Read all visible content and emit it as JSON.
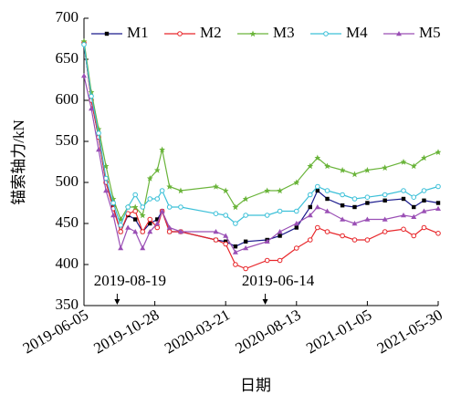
{
  "chart_data": {
    "type": "line",
    "x_label": "日期",
    "y_label": "锚索轴力/kN",
    "x": [
      "2019-06-05",
      "2019-06-20",
      "2019-07-05",
      "2019-07-20",
      "2019-08-04",
      "2019-08-19",
      "2019-09-03",
      "2019-09-18",
      "2019-10-03",
      "2019-10-18",
      "2019-11-02",
      "2019-11-12",
      "2019-11-27",
      "2019-12-20",
      "2020-03-01",
      "2020-03-21",
      "2020-04-10",
      "2020-05-01",
      "2020-06-14",
      "2020-07-10",
      "2020-08-13",
      "2020-09-10",
      "2020-09-25",
      "2020-10-15",
      "2020-11-15",
      "2020-12-10",
      "2021-01-05",
      "2021-02-10",
      "2021-03-20",
      "2021-04-10",
      "2021-05-01",
      "2021-05-30"
    ],
    "series": [
      {
        "name": "M1",
        "color": "#1a1a8c",
        "marker": "square",
        "values": [
          670,
          600,
          555,
          500,
          470,
          440,
          460,
          455,
          440,
          450,
          455,
          465,
          440,
          440,
          430,
          428,
          422,
          428,
          430,
          435,
          445,
          470,
          490,
          480,
          472,
          470,
          475,
          478,
          480,
          470,
          478,
          475
        ]
      },
      {
        "name": "M2",
        "color": "#e8262a",
        "marker": "circle",
        "values": [
          670,
          600,
          555,
          500,
          468,
          440,
          462,
          465,
          440,
          455,
          445,
          465,
          440,
          440,
          430,
          425,
          400,
          395,
          405,
          405,
          420,
          430,
          445,
          440,
          435,
          430,
          430,
          440,
          443,
          435,
          445,
          438
        ]
      },
      {
        "name": "M3",
        "color": "#6ab43a",
        "marker": "star",
        "values": [
          672,
          610,
          565,
          520,
          480,
          455,
          470,
          470,
          460,
          505,
          515,
          540,
          495,
          490,
          495,
          490,
          470,
          480,
          490,
          490,
          500,
          520,
          530,
          520,
          515,
          510,
          515,
          518,
          525,
          520,
          530,
          537
        ]
      },
      {
        "name": "M4",
        "color": "#3cc0d8",
        "marker": "circle",
        "values": [
          668,
          605,
          560,
          505,
          475,
          448,
          470,
          485,
          470,
          480,
          480,
          490,
          470,
          470,
          462,
          460,
          450,
          460,
          460,
          465,
          465,
          485,
          495,
          490,
          485,
          480,
          482,
          485,
          490,
          482,
          490,
          495
        ]
      },
      {
        "name": "M5",
        "color": "#9a4fb5",
        "marker": "triangle",
        "values": [
          630,
          590,
          540,
          490,
          460,
          420,
          445,
          440,
          420,
          440,
          450,
          465,
          445,
          440,
          440,
          435,
          415,
          420,
          428,
          440,
          450,
          460,
          470,
          465,
          455,
          450,
          455,
          455,
          460,
          458,
          465,
          468
        ]
      }
    ],
    "xlim": [
      "2019-06-05",
      "2021-05-30"
    ],
    "xticks": [
      "2019-06-05",
      "2019-10-28",
      "2020-03-21",
      "2020-08-13",
      "2021-01-05",
      "2021-05-30"
    ],
    "ylim": [
      350,
      700
    ],
    "yticks": [
      350,
      400,
      450,
      500,
      550,
      600,
      650,
      700
    ],
    "annotations": [
      {
        "text": "2019-08-19",
        "x": "2019-08-12"
      },
      {
        "text": "2019-06-14",
        "x": "2020-06-10"
      }
    ],
    "legend": "top"
  }
}
